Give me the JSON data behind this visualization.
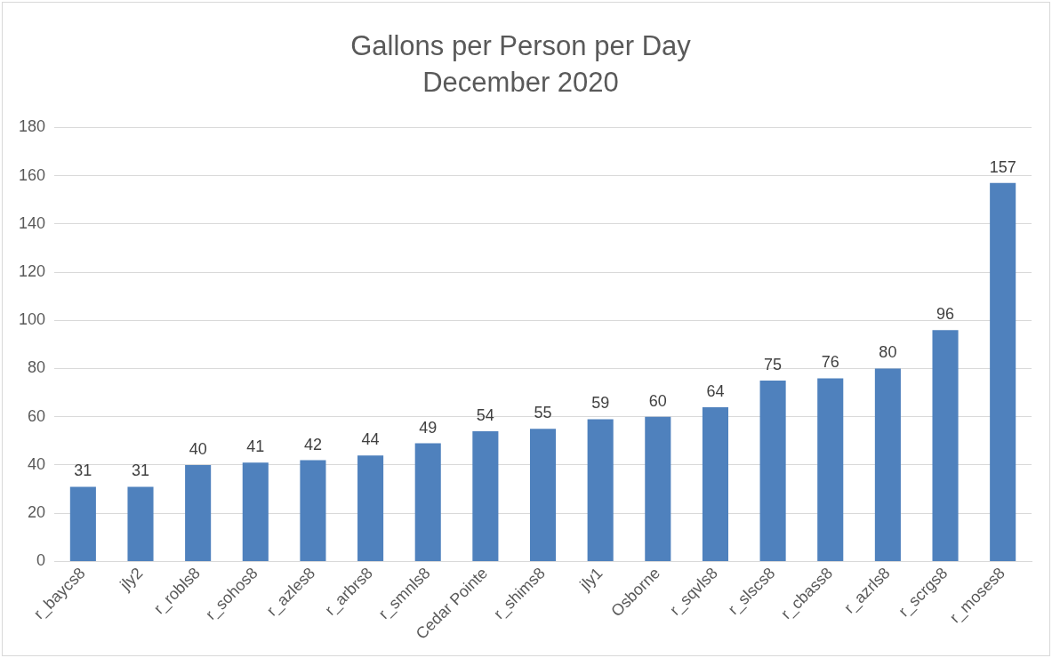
{
  "chart_data": {
    "type": "bar",
    "title": "Gallons per Person per Day",
    "subtitle": "December 2020",
    "categories": [
      "r_baycs8",
      "jly2",
      "r_robls8",
      "r_sohos8",
      "r_azles8",
      "r_arbrs8",
      "r_smnls8",
      "Cedar Pointe",
      "r_shims8",
      "jly1",
      "Osborne",
      "r_sqvls8",
      "r_slscs8",
      "r_cbass8",
      "r_azrls8",
      "r_scrgs8",
      "r_moses8"
    ],
    "values": [
      31,
      31,
      40,
      41,
      42,
      44,
      49,
      54,
      55,
      59,
      60,
      64,
      75,
      76,
      80,
      96,
      157
    ],
    "color": "#4f81bd",
    "ylim": [
      0,
      180
    ],
    "yticks": [
      0,
      20,
      40,
      60,
      80,
      100,
      120,
      140,
      160,
      180
    ],
    "grid": "y",
    "data_labels": true,
    "legend": false
  }
}
